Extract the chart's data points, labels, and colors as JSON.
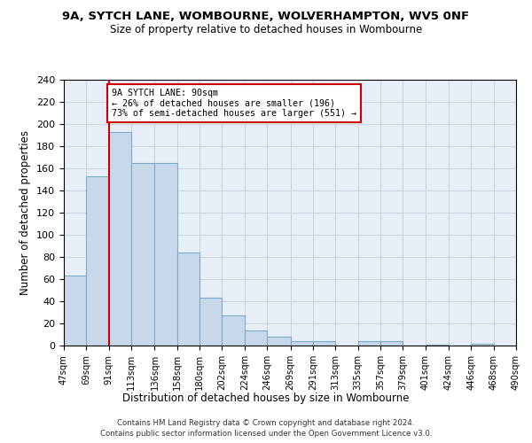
{
  "title1": "9A, SYTCH LANE, WOMBOURNE, WOLVERHAMPTON, WV5 0NF",
  "title2": "Size of property relative to detached houses in Wombourne",
  "xlabel": "Distribution of detached houses by size in Wombourne",
  "ylabel": "Number of detached properties",
  "bin_edges": [
    47,
    69,
    91,
    113,
    136,
    158,
    180,
    202,
    224,
    246,
    269,
    291,
    313,
    335,
    357,
    379,
    401,
    424,
    446,
    468,
    490
  ],
  "bar_heights": [
    63,
    153,
    193,
    165,
    165,
    84,
    43,
    27,
    14,
    8,
    4,
    4,
    0,
    4,
    4,
    0,
    1,
    0,
    2,
    0
  ],
  "tick_labels": [
    "47sqm",
    "69sqm",
    "91sqm",
    "113sqm",
    "136sqm",
    "158sqm",
    "180sqm",
    "202sqm",
    "224sqm",
    "246sqm",
    "269sqm",
    "291sqm",
    "313sqm",
    "335sqm",
    "357sqm",
    "379sqm",
    "401sqm",
    "424sqm",
    "446sqm",
    "468sqm",
    "490sqm"
  ],
  "bar_color": "#c8d8ea",
  "bar_edge_color": "#7aaac8",
  "vline_x": 91,
  "vline_color": "#cc0000",
  "annotation_line1": "9A SYTCH LANE: 90sqm",
  "annotation_line2": "← 26% of detached houses are smaller (196)",
  "annotation_line3": "73% of semi-detached houses are larger (551) →",
  "ylim": [
    0,
    240
  ],
  "yticks": [
    0,
    20,
    40,
    60,
    80,
    100,
    120,
    140,
    160,
    180,
    200,
    220,
    240
  ],
  "grid_color": "#c8d4e4",
  "bg_color": "#e8eef8",
  "footer1": "Contains HM Land Registry data © Crown copyright and database right 2024.",
  "footer2": "Contains public sector information licensed under the Open Government Licence v3.0."
}
